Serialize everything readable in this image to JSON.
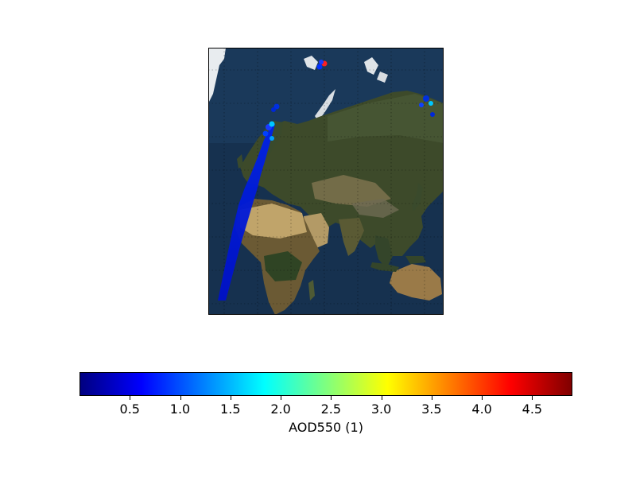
{
  "map": {
    "basemap": "blue-marble-satellite",
    "region": "Europe, Africa and Asia",
    "graticule": true,
    "overlay": "satellite-swath-aerosol-points"
  },
  "colorbar": {
    "colormap": "jet",
    "vmin": 0.0,
    "vmax": 4.9,
    "ticks": [
      0.5,
      1.0,
      1.5,
      2.0,
      2.5,
      3.0,
      3.5,
      4.0,
      4.5
    ],
    "tick_labels": [
      "0.5",
      "1.0",
      "1.5",
      "2.0",
      "2.5",
      "3.0",
      "3.5",
      "4.0",
      "4.5"
    ],
    "label": "AOD550 (1)",
    "colors": [
      "#00007f",
      "#0000ff",
      "#007fff",
      "#00ffff",
      "#7fff7f",
      "#ffff00",
      "#ff7f00",
      "#ff0000",
      "#7f0000"
    ]
  }
}
